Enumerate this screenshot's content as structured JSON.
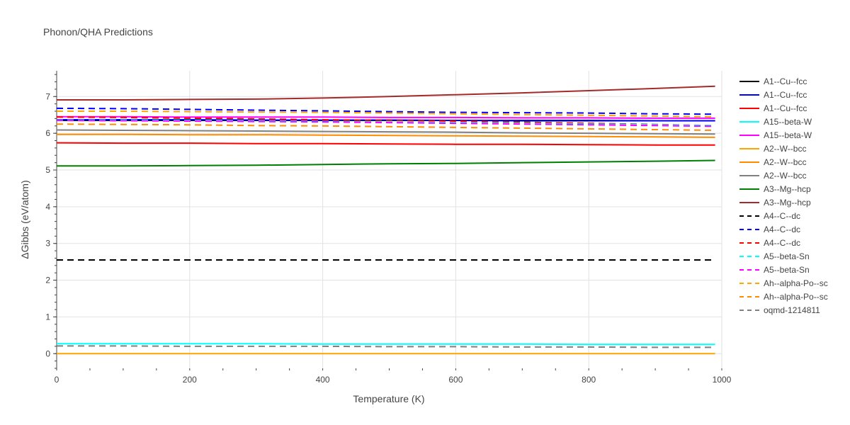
{
  "chart_data": {
    "type": "line",
    "title": "Phonon/QHA Predictions",
    "xlabel": "Temperature (K)",
    "ylabel": "ΔGibbs (eV/atom)",
    "xlim": [
      0,
      1000
    ],
    "ylim": [
      -0.4,
      7.7
    ],
    "xticks": [
      "0",
      "200",
      "400",
      "600",
      "800",
      "1000"
    ],
    "yticks": [
      "0",
      "1",
      "2",
      "3",
      "4",
      "5",
      "6",
      "7"
    ],
    "grid": true,
    "legend_position": "right",
    "x": [
      0,
      100,
      200,
      300,
      400,
      500,
      600,
      700,
      800,
      900,
      990
    ],
    "series": [
      {
        "name": "A1--Cu--fcc",
        "color": "#000000",
        "dash": "solid",
        "values": [
          6.35,
          6.35,
          6.35,
          6.35,
          6.35,
          6.35,
          6.35,
          6.34,
          6.34,
          6.34,
          6.34
        ]
      },
      {
        "name": "A1--Cu--fcc",
        "color": "#0000ff",
        "dash": "solid",
        "values": [
          6.37,
          6.37,
          6.37,
          6.36,
          6.36,
          6.36,
          6.35,
          6.35,
          6.35,
          6.34,
          6.34
        ]
      },
      {
        "name": "A1--Cu--fcc",
        "color": "#ff0000",
        "dash": "solid",
        "values": [
          5.74,
          5.73,
          5.73,
          5.72,
          5.72,
          5.71,
          5.7,
          5.7,
          5.69,
          5.68,
          5.68
        ]
      },
      {
        "name": "A15--beta-W",
        "color": "#00ffff",
        "dash": "solid",
        "values": [
          0.27,
          0.27,
          0.27,
          0.27,
          0.26,
          0.26,
          0.26,
          0.26,
          0.25,
          0.25,
          0.25
        ]
      },
      {
        "name": "A15--beta-W",
        "color": "#ff00ff",
        "dash": "solid",
        "values": [
          6.45,
          6.45,
          6.44,
          6.44,
          6.44,
          6.43,
          6.43,
          6.42,
          6.42,
          6.41,
          6.41
        ]
      },
      {
        "name": "A2--W--bcc",
        "color": "#ffa500",
        "dash": "solid",
        "values": [
          0.0,
          0.0,
          0.0,
          0.0,
          0.0,
          0.0,
          0.0,
          0.0,
          0.0,
          0.0,
          0.0
        ]
      },
      {
        "name": "A2--W--bcc",
        "color": "#ff8c00",
        "dash": "solid",
        "values": [
          5.97,
          5.97,
          5.96,
          5.96,
          5.95,
          5.94,
          5.93,
          5.92,
          5.91,
          5.9,
          5.89
        ]
      },
      {
        "name": "A2--W--bcc",
        "color": "#808080",
        "dash": "solid",
        "values": [
          6.09,
          6.08,
          6.07,
          6.06,
          6.05,
          6.04,
          6.03,
          6.01,
          6.0,
          5.99,
          5.98
        ]
      },
      {
        "name": "A3--Mg--hcp",
        "color": "#008000",
        "dash": "solid",
        "values": [
          5.11,
          5.11,
          5.12,
          5.13,
          5.15,
          5.17,
          5.18,
          5.2,
          5.22,
          5.24,
          5.26
        ]
      },
      {
        "name": "A3--Mg--hcp",
        "color": "#a52a2a",
        "dash": "solid",
        "values": [
          6.91,
          6.91,
          6.92,
          6.93,
          6.96,
          7.0,
          7.05,
          7.1,
          7.16,
          7.22,
          7.28
        ]
      },
      {
        "name": "A4--C--dc",
        "color": "#000000",
        "dash": "dash",
        "values": [
          2.55,
          2.55,
          2.55,
          2.55,
          2.55,
          2.55,
          2.55,
          2.55,
          2.55,
          2.55,
          2.55
        ]
      },
      {
        "name": "A4--C--dc",
        "color": "#0000ff",
        "dash": "dash",
        "values": [
          6.68,
          6.67,
          6.65,
          6.63,
          6.61,
          6.59,
          6.57,
          6.56,
          6.55,
          6.53,
          6.52
        ]
      },
      {
        "name": "A4--C--dc",
        "color": "#ff0000",
        "dash": "dash",
        "values": [
          6.44,
          6.43,
          6.41,
          6.39,
          6.37,
          6.35,
          6.33,
          6.3,
          6.27,
          6.24,
          6.21
        ]
      },
      {
        "name": "A5--beta-Sn",
        "color": "#00ffff",
        "dash": "dash",
        "values": [
          6.36,
          6.36,
          6.35,
          6.34,
          6.32,
          6.31,
          6.29,
          6.27,
          6.25,
          6.23,
          6.21
        ]
      },
      {
        "name": "A5--beta-Sn",
        "color": "#ff00ff",
        "dash": "dash",
        "values": [
          6.35,
          6.34,
          6.33,
          6.32,
          6.31,
          6.29,
          6.27,
          6.25,
          6.23,
          6.21,
          6.19
        ]
      },
      {
        "name": "Ah--alpha-Po--sc",
        "color": "#ffa500",
        "dash": "dash",
        "values": [
          6.6,
          6.6,
          6.59,
          6.58,
          6.57,
          6.55,
          6.53,
          6.51,
          6.49,
          6.47,
          6.45
        ]
      },
      {
        "name": "Ah--alpha-Po--sc",
        "color": "#ff8c00",
        "dash": "dash",
        "values": [
          6.25,
          6.24,
          6.23,
          6.21,
          6.2,
          6.18,
          6.16,
          6.14,
          6.12,
          6.1,
          6.08
        ]
      },
      {
        "name": "oqmd-1214811",
        "color": "#808080",
        "dash": "dash",
        "values": [
          0.21,
          0.21,
          0.2,
          0.2,
          0.2,
          0.19,
          0.19,
          0.18,
          0.18,
          0.17,
          0.17
        ]
      }
    ]
  }
}
